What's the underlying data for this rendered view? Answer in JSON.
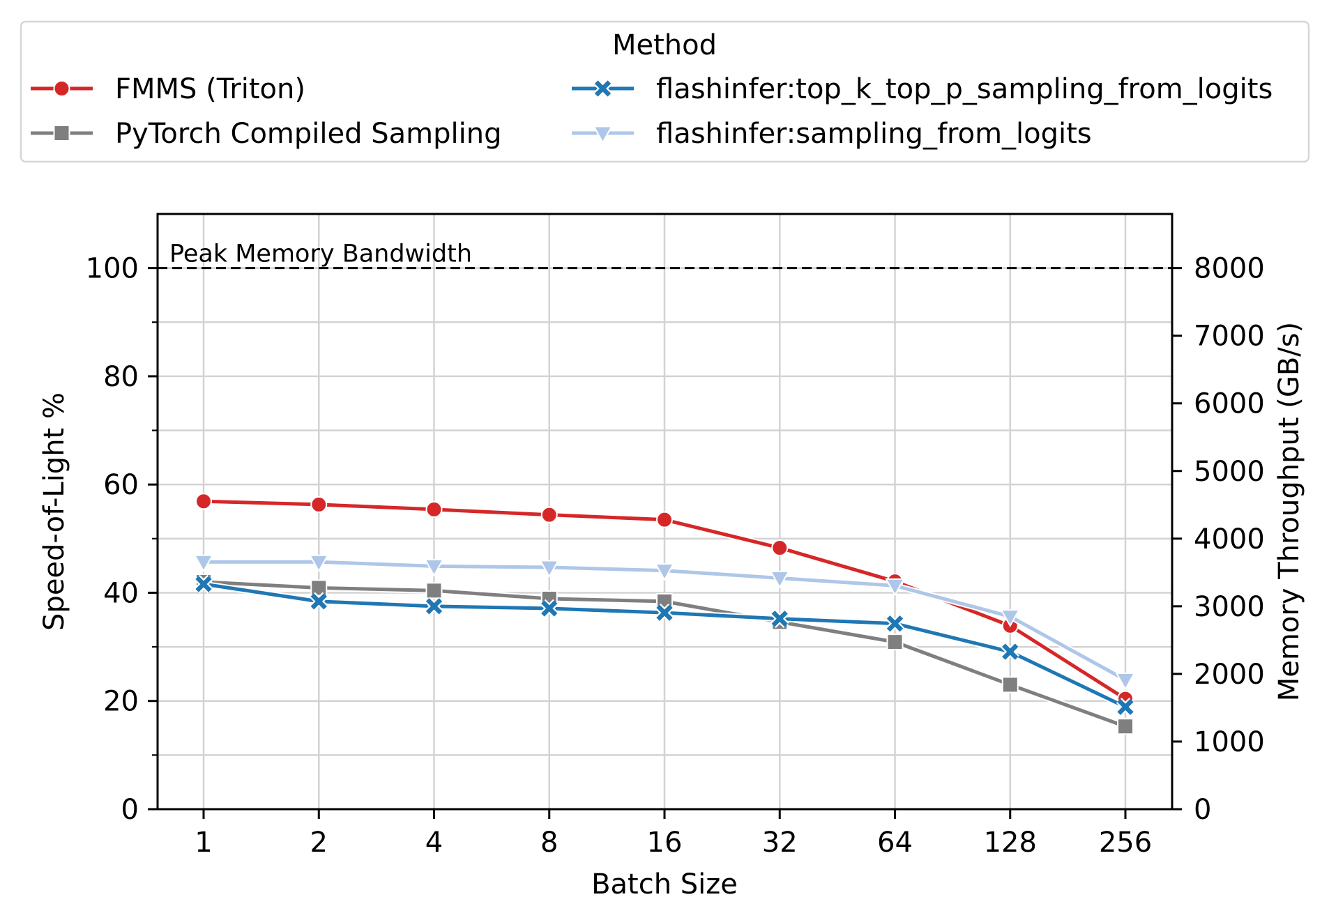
{
  "chart_data": {
    "type": "line",
    "title": "",
    "xlabel": "Batch Size",
    "ylabel": "Speed-of-Light %",
    "ylabel_right": "Memory Throughput (GB/s)",
    "categories": [
      "1",
      "2",
      "4",
      "8",
      "16",
      "32",
      "64",
      "128",
      "256"
    ],
    "ylim": [
      0,
      110
    ],
    "ylim_right": [
      0,
      8800
    ],
    "yticks": [
      "0",
      "20",
      "40",
      "60",
      "80",
      "100"
    ],
    "yticks_right": [
      "0",
      "1000",
      "2000",
      "3000",
      "4000",
      "5000",
      "6000",
      "7000",
      "8000"
    ],
    "grid": true,
    "legend": {
      "title": "Method",
      "placement": "top",
      "columns": 2
    },
    "reference_line": {
      "label": "Peak Memory Bandwidth",
      "value": 100,
      "style": "dashed",
      "color": "#000000"
    },
    "series": [
      {
        "name": "FMMS (Triton)",
        "color": "#d62728",
        "marker": "circle",
        "values": [
          56.9,
          56.3,
          55.4,
          54.4,
          53.5,
          48.3,
          42.1,
          33.9,
          20.4
        ]
      },
      {
        "name": "PyTorch Compiled Sampling",
        "color": "#7f7f7f",
        "marker": "square",
        "values": [
          42.0,
          40.9,
          40.4,
          38.9,
          38.4,
          34.6,
          30.9,
          23.0,
          15.3
        ]
      },
      {
        "name": "flashinfer:top_k_top_p_sampling_from_logits",
        "color": "#1f77b4",
        "marker": "x",
        "values": [
          41.6,
          38.4,
          37.5,
          37.1,
          36.3,
          35.2,
          34.3,
          29.1,
          18.9
        ]
      },
      {
        "name": "flashinfer:sampling_from_logits",
        "color": "#aec7e8",
        "marker": "triangle-down",
        "values": [
          45.7,
          45.7,
          44.9,
          44.7,
          44.1,
          42.7,
          41.3,
          35.6,
          23.9
        ]
      }
    ]
  }
}
